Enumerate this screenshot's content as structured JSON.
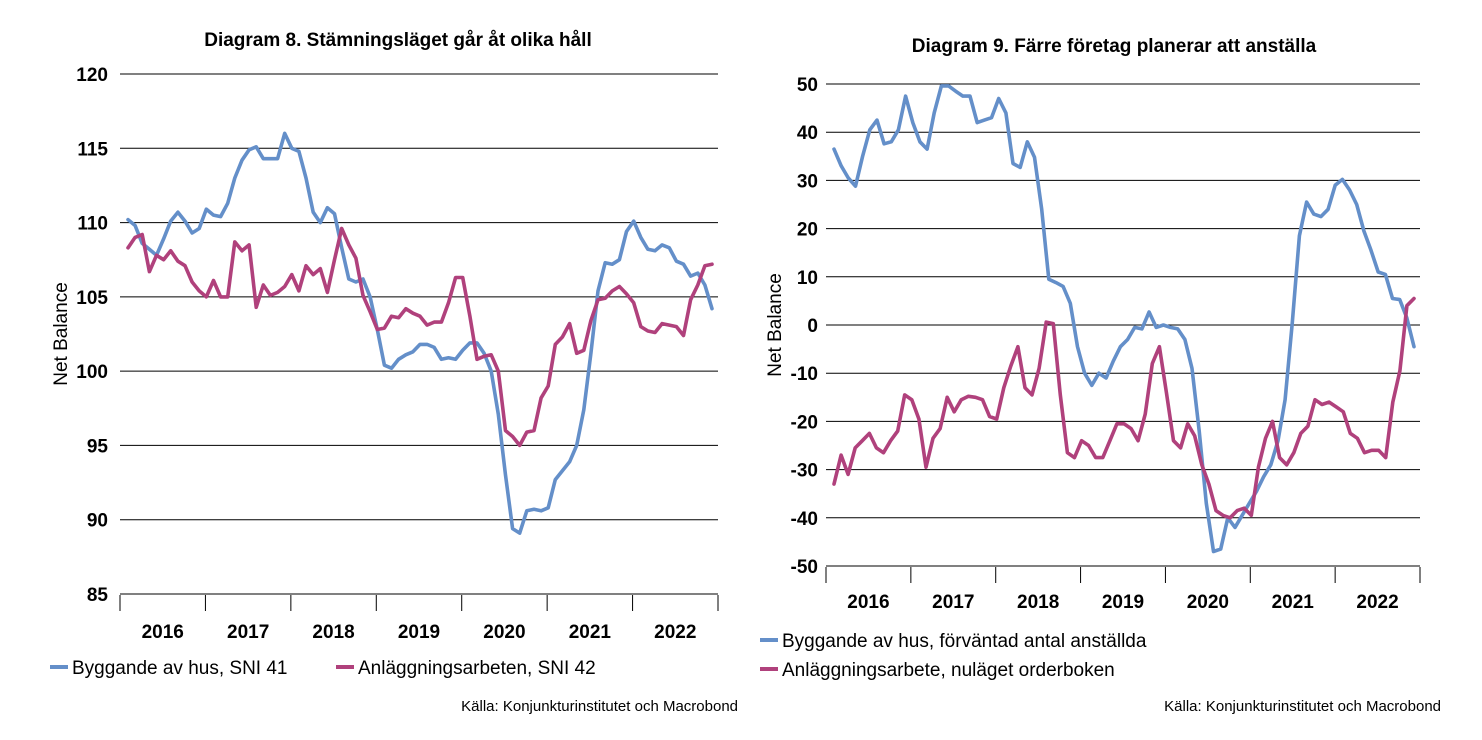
{
  "chart_data": [
    {
      "type": "line",
      "title": "Diagram 8. Stämningsläget går åt olika håll",
      "ylabel": "Net Balance",
      "ylim": [
        85,
        120
      ],
      "yticks": [
        85,
        90,
        95,
        100,
        105,
        110,
        115,
        120
      ],
      "grid": true,
      "x_tick_labels": [
        "2016",
        "2017",
        "2018",
        "2019",
        "2020",
        "2021",
        "2022"
      ],
      "x_start": "2015-12",
      "x_end": "2022-10",
      "source": "Källa: Konjunkturinstitutet och Macrobond",
      "legend_position": "bottom",
      "series": [
        {
          "name": "Byggande av hus, SNI 41",
          "color": "#648fc9",
          "values": [
            110.2,
            109.8,
            108.6,
            108.2,
            107.8,
            108.9,
            110.1,
            110.7,
            110.1,
            109.3,
            109.6,
            110.9,
            110.5,
            110.4,
            111.3,
            113.0,
            114.2,
            114.9,
            115.1,
            114.3,
            114.3,
            114.3,
            116.0,
            115.0,
            114.8,
            113.0,
            110.7,
            110.0,
            111.0,
            110.6,
            108.3,
            106.2,
            106.0,
            106.2,
            105.0,
            102.8,
            100.4,
            100.2,
            100.8,
            101.1,
            101.3,
            101.8,
            101.8,
            101.6,
            100.8,
            100.9,
            100.8,
            101.4,
            101.9,
            101.9,
            101.2,
            100.0,
            97.1,
            93.0,
            89.4,
            89.1,
            90.6,
            90.7,
            90.6,
            90.8,
            92.7,
            93.3,
            93.9,
            95.0,
            97.4,
            101.2,
            105.4,
            107.3,
            107.2,
            107.5,
            109.4,
            110.1,
            109.0,
            108.2,
            108.1,
            108.5,
            108.3,
            107.4,
            107.2,
            106.4,
            106.6,
            105.8,
            104.2
          ]
        },
        {
          "name": "Anläggningsarbeten, SNI 42",
          "color": "#b0417c",
          "values": [
            108.3,
            109.0,
            109.2,
            106.7,
            107.8,
            107.5,
            108.1,
            107.4,
            107.1,
            106.0,
            105.4,
            105.0,
            106.1,
            105.0,
            105.0,
            108.7,
            108.1,
            108.5,
            104.3,
            105.8,
            105.1,
            105.3,
            105.7,
            106.5,
            105.4,
            107.1,
            106.5,
            106.9,
            105.3,
            107.5,
            109.6,
            108.5,
            107.6,
            105.1,
            104.0,
            102.8,
            102.9,
            103.7,
            103.6,
            104.2,
            103.9,
            103.7,
            103.1,
            103.3,
            103.3,
            104.6,
            106.3,
            106.3,
            103.7,
            100.8,
            101.0,
            101.1,
            100.0,
            96.0,
            95.6,
            95.0,
            95.9,
            96.0,
            98.2,
            99.0,
            101.8,
            102.3,
            103.2,
            101.2,
            101.4,
            103.4,
            104.8,
            104.9,
            105.4,
            105.7,
            105.2,
            104.6,
            103.0,
            102.7,
            102.6,
            103.2,
            103.1,
            103.0,
            102.4,
            104.8,
            105.8,
            107.1,
            107.2
          ]
        }
      ]
    },
    {
      "type": "line",
      "title": "Diagram 9. Färre företag planerar att anställa",
      "ylabel": "Net Balance",
      "ylim": [
        -50,
        50
      ],
      "yticks": [
        -50,
        -40,
        -30,
        -20,
        -10,
        0,
        10,
        20,
        30,
        40,
        50
      ],
      "grid": true,
      "x_tick_labels": [
        "2016",
        "2017",
        "2018",
        "2019",
        "2020",
        "2021",
        "2022"
      ],
      "x_start": "2015-12",
      "x_end": "2022-10",
      "source": "Källa: Konjunkturinstitutet och Macrobond",
      "legend_position": "bottom",
      "series": [
        {
          "name": "Byggande av hus, förväntad antal anställda",
          "color": "#648fc9",
          "values": [
            36.5,
            33.0,
            30.5,
            28.8,
            35.0,
            40.5,
            42.5,
            37.6,
            38.0,
            40.5,
            47.5,
            42.0,
            38.0,
            36.5,
            44.0,
            49.6,
            49.6,
            48.5,
            47.5,
            47.5,
            42.0,
            42.5,
            43.0,
            47.0,
            44.0,
            33.5,
            32.7,
            38.0,
            34.8,
            24.0,
            9.5,
            8.8,
            8.0,
            4.5,
            -4.5,
            -10.0,
            -12.5,
            -10.0,
            -11.0,
            -7.5,
            -4.5,
            -3.0,
            -0.5,
            -0.8,
            2.7,
            -0.5,
            0.0,
            -0.5,
            -0.8,
            -3.0,
            -9.0,
            -22.0,
            -37.0,
            -47.0,
            -46.5,
            -40.0,
            -42.0,
            -39.5,
            -37.0,
            -34.5,
            -31.5,
            -29.0,
            -24.0,
            -15.5,
            0.5,
            18.5,
            25.5,
            23.0,
            22.5,
            24.0,
            29.0,
            30.2,
            28.0,
            25.0,
            19.5,
            15.5,
            11.0,
            10.5,
            5.5,
            5.3,
            1.5,
            -4.5
          ]
        },
        {
          "name": "Anläggningsarbete, nuläget orderboken",
          "color": "#b0417c",
          "values": [
            -33.0,
            -27.0,
            -31.0,
            -25.5,
            -24.0,
            -22.5,
            -25.5,
            -26.5,
            -24.0,
            -22.0,
            -14.5,
            -15.5,
            -19.5,
            -29.5,
            -23.5,
            -21.5,
            -15.0,
            -18.0,
            -15.5,
            -14.8,
            -15.0,
            -15.5,
            -19.0,
            -19.5,
            -13.0,
            -8.5,
            -4.5,
            -13.0,
            -14.5,
            -9.0,
            0.6,
            0.3,
            -14.5,
            -26.5,
            -27.5,
            -24.0,
            -25.0,
            -27.5,
            -27.5,
            -24.0,
            -20.5,
            -20.5,
            -21.5,
            -24.0,
            -18.5,
            -8.0,
            -4.5,
            -14.0,
            -24.0,
            -25.5,
            -20.5,
            -23.0,
            -29.0,
            -33.0,
            -38.5,
            -39.5,
            -40.0,
            -38.5,
            -38.0,
            -39.5,
            -29.5,
            -23.5,
            -20.0,
            -27.5,
            -29.0,
            -26.5,
            -22.5,
            -21.0,
            -15.5,
            -16.5,
            -16.0,
            -17.0,
            -18.0,
            -22.5,
            -23.5,
            -26.5,
            -26.0,
            -26.0,
            -27.5,
            -16.0,
            -9.5,
            4.0,
            5.5
          ]
        }
      ]
    }
  ]
}
